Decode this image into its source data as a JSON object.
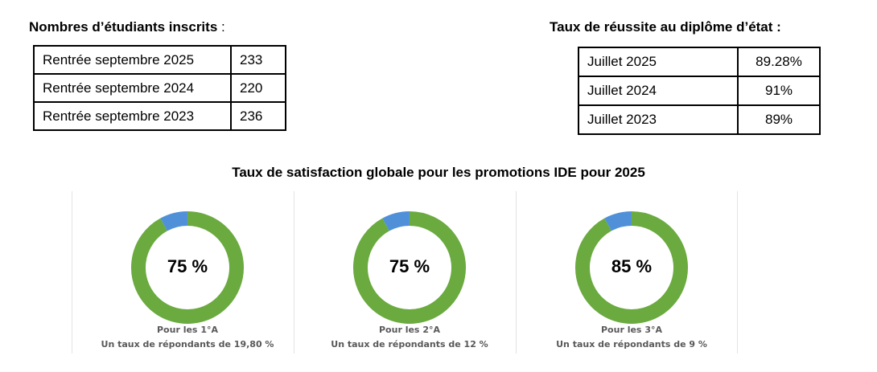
{
  "enrolment": {
    "heading": "Nombres d’étudiants inscrits",
    "heading_suffix": ":",
    "rows": [
      {
        "label": "Rentrée septembre 2025",
        "value": "233"
      },
      {
        "label": "Rentrée septembre 2024",
        "value": "220"
      },
      {
        "label": "Rentrée septembre 2023",
        "value": "236"
      }
    ]
  },
  "success": {
    "heading": "Taux de réussite au diplôme d’état :",
    "rows": [
      {
        "label": "Juillet 2025",
        "value": "89.28%"
      },
      {
        "label": "Juillet 2024",
        "value": "91%"
      },
      {
        "label": "Juillet 2023",
        "value": "89%"
      }
    ]
  },
  "satisfaction": {
    "title": "Taux de satisfaction globale pour les promotions IDE pour 2025",
    "colors": {
      "satisfied": "#6aaa3f",
      "other": "#4f90d9"
    },
    "panels": [
      {
        "value_label": "75 %",
        "caption_line1": "Pour les 1°A",
        "caption_line2": "Un taux de répondants de 19,80 %"
      },
      {
        "value_label": "75 %",
        "caption_line1": "Pour les 2°A",
        "caption_line2": "Un taux de répondants de 12 %"
      },
      {
        "value_label": "85 %",
        "caption_line1": "Pour les 3°A",
        "caption_line2": "Un taux de répondants de 9 %"
      }
    ]
  },
  "chart_data": [
    {
      "type": "table",
      "title": "Nombres d’étudiants inscrits",
      "categories": [
        "Rentrée septembre 2025",
        "Rentrée septembre 2024",
        "Rentrée septembre 2023"
      ],
      "values": [
        233,
        220,
        236
      ]
    },
    {
      "type": "table",
      "title": "Taux de réussite au diplôme d’état",
      "categories": [
        "Juillet 2025",
        "Juillet 2024",
        "Juillet 2023"
      ],
      "values": [
        89.28,
        91,
        89
      ]
    },
    {
      "type": "pie",
      "title": "Taux de satisfaction globale pour les promotions IDE pour 2025",
      "categories": [
        "Pour les 1°A",
        "Pour les 2°A",
        "Pour les 3°A"
      ],
      "values": [
        75,
        75,
        85
      ],
      "blue_segment_fraction": 0.08
    }
  ]
}
